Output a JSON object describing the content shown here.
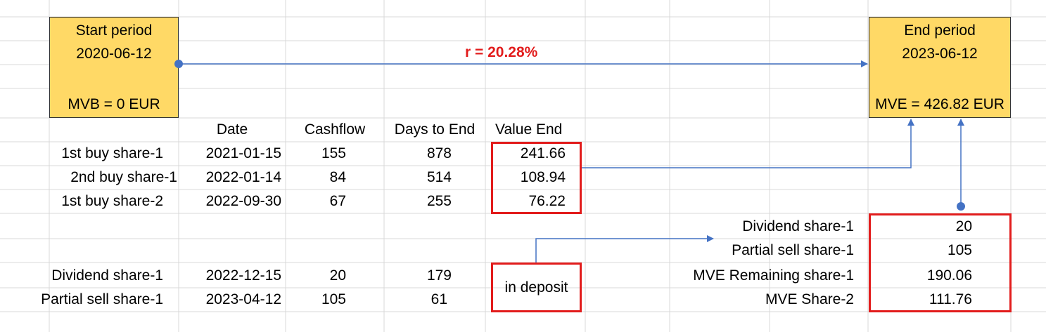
{
  "start_box": {
    "title": "Start period",
    "date": "2020-06-12",
    "mv": "MVB = 0 EUR"
  },
  "end_box": {
    "title": "End period",
    "date": "2023-06-12",
    "mv": "MVE = 426.82 EUR"
  },
  "rate_label": "r =  20.28%",
  "table": {
    "headers": [
      "Date",
      "Cashflow",
      "Days to End",
      "Value End"
    ],
    "rows": [
      {
        "label": "1st buy share-1",
        "date": "2021-01-15",
        "cashflow": "155",
        "days": "878",
        "value": "241.66"
      },
      {
        "label": "2nd buy share-1",
        "date": "2022-01-14",
        "cashflow": "84",
        "days": "514",
        "value": "108.94"
      },
      {
        "label": "1st buy share-2",
        "date": "2022-09-30",
        "cashflow": "67",
        "days": "255",
        "value": "76.22"
      }
    ],
    "deposit_rows": [
      {
        "label": "Dividend share-1",
        "date": "2022-12-15",
        "cashflow": "20",
        "days": "179"
      },
      {
        "label": "Partial sell share-1",
        "date": "2023-04-12",
        "cashflow": "105",
        "days": "61"
      }
    ],
    "deposit_label": "in deposit"
  },
  "mve_breakdown": [
    {
      "label": "Dividend share-1",
      "value": "20"
    },
    {
      "label": "Partial sell share-1",
      "value": "105"
    },
    {
      "label": "MVE Remaining share-1",
      "value": "190.06"
    },
    {
      "label": "MVE Share-2",
      "value": "111.76"
    }
  ],
  "colors": {
    "box_fill": "#ffd966",
    "highlight": "#e21c1c",
    "arrow": "#4472c4",
    "grid": "#d9d9d9"
  }
}
